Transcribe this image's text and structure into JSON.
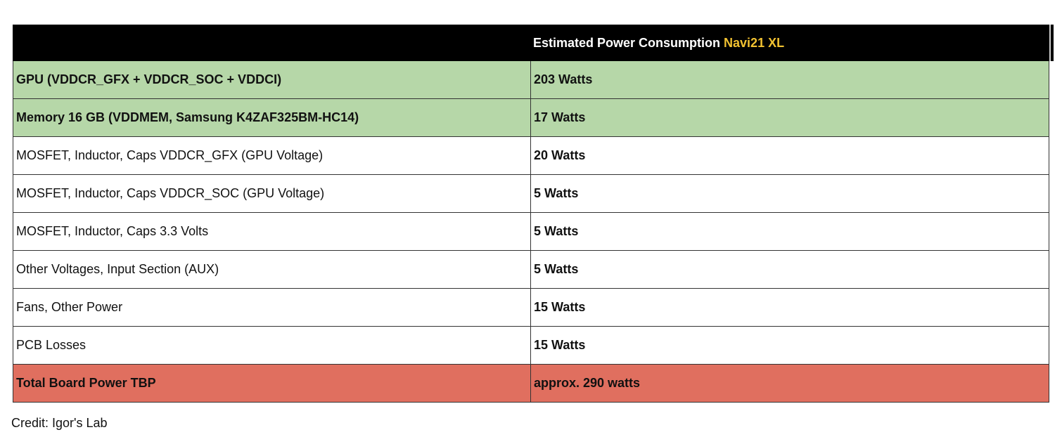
{
  "table": {
    "header": {
      "label": "Estimated Power Consumption",
      "accent_label": "Navi21 XL",
      "accent_color": "#f2c231"
    },
    "rows": [
      {
        "component": "GPU (VDDCR_GFX + VDDCR_SOC + VDDCI)",
        "power": "203 Watts",
        "highlight": "green"
      },
      {
        "component": "Memory 16 GB (VDDMEM, Samsung K4ZAF325BM-HC14)",
        "power": "17 Watts",
        "highlight": "green"
      },
      {
        "component": "MOSFET, Inductor, Caps VDDCR_GFX (GPU Voltage)",
        "power": "20 Watts",
        "highlight": "none"
      },
      {
        "component": "MOSFET, Inductor, Caps VDDCR_SOC (GPU Voltage)",
        "power": "5 Watts",
        "highlight": "none"
      },
      {
        "component": "MOSFET, Inductor, Caps 3.3 Volts",
        "power": "5 Watts",
        "highlight": "none"
      },
      {
        "component": "Other Voltages, Input Section (AUX)",
        "power": "5 Watts",
        "highlight": "none"
      },
      {
        "component": "Fans, Other Power",
        "power": "15 Watts",
        "highlight": "none"
      },
      {
        "component": "PCB Losses",
        "power": "15 Watts",
        "highlight": "none"
      },
      {
        "component": "Total Board Power TBP",
        "power": "approx. 290 watts",
        "highlight": "red"
      }
    ],
    "colors": {
      "header_bg": "#000000",
      "green": "#b6d7a8",
      "red": "#e06f5f"
    }
  },
  "credit": "Credit: Igor's Lab"
}
